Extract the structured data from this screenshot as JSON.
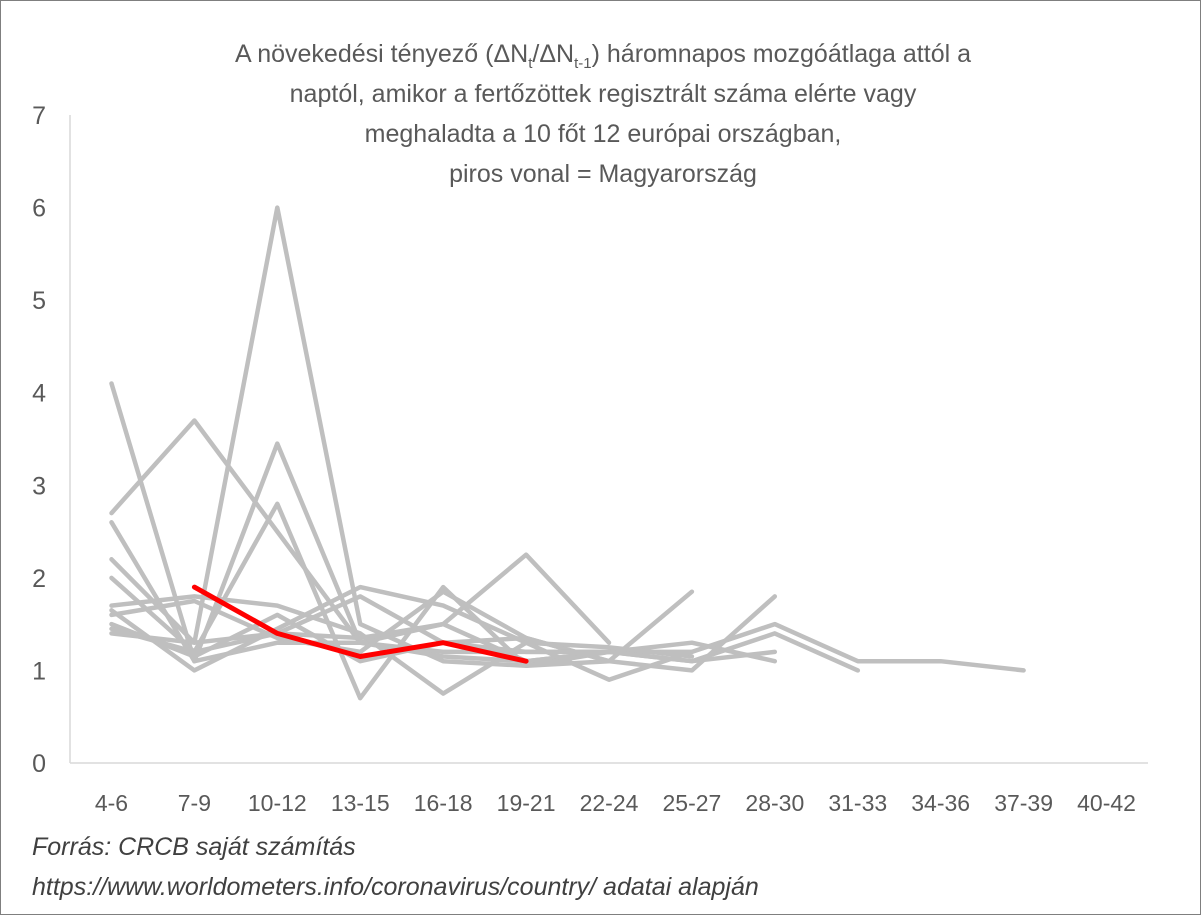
{
  "title": {
    "line1_pre": "A növekedési tényező (ΔN",
    "line1_sub1": "t",
    "line1_mid": "/ΔN",
    "line1_sub2": "t-1",
    "line1_post": ") háromnapos mozgóátlaga attól a",
    "line2": "naptól, amikor a fertőzöttek regisztrált száma elérte vagy",
    "line3": "meghaladta a 10 főt 12 európai országban,",
    "line4": "piros vonal = Magyarország"
  },
  "source": {
    "line1": "Forrás: CRCB saját számítás",
    "line2": "https://www.worldometers.info/coronavirus/country/ adatai alapján"
  },
  "colors": {
    "other": "#bfbfbf",
    "highlight": "#ff0000",
    "axis": "#d9d9d9",
    "text": "#595959"
  },
  "chart_data": {
    "type": "line",
    "categories": [
      "4-6",
      "7-9",
      "10-12",
      "13-15",
      "16-18",
      "19-21",
      "22-24",
      "25-27",
      "28-30",
      "31-33",
      "34-36",
      "37-39",
      "40-42"
    ],
    "ylim": [
      0,
      7
    ],
    "yticks": [
      0,
      1,
      2,
      3,
      4,
      5,
      6,
      7
    ],
    "grid": false,
    "legend": "none",
    "series": [
      {
        "highlight": false,
        "values": [
          4.1,
          1.1,
          1.3,
          1.3,
          1.2,
          1.2,
          1.2,
          1.2,
          1.5,
          1.1,
          1.1,
          1.0,
          null
        ]
      },
      {
        "highlight": false,
        "values": [
          2.7,
          3.7,
          2.5,
          1.3,
          1.5,
          1.1,
          1.2,
          1.1,
          1.4,
          1.0,
          null,
          null,
          null
        ]
      },
      {
        "highlight": false,
        "values": [
          2.6,
          1.1,
          3.45,
          1.3,
          1.15,
          1.1,
          1.2,
          1.3,
          1.1,
          null,
          null,
          null,
          null
        ]
      },
      {
        "highlight": false,
        "values": [
          2.2,
          1.3,
          6.0,
          1.5,
          1.1,
          1.05,
          1.2,
          1.1,
          1.2,
          null,
          null,
          null,
          null
        ]
      },
      {
        "highlight": false,
        "values": [
          2.0,
          1.2,
          2.8,
          0.7,
          1.9,
          1.05,
          1.1,
          1.0,
          1.8,
          null,
          null,
          null,
          null
        ]
      },
      {
        "highlight": false,
        "values": [
          1.7,
          1.8,
          1.7,
          1.4,
          0.75,
          1.3,
          1.25,
          1.15,
          null,
          null,
          null,
          null,
          null
        ]
      },
      {
        "highlight": false,
        "values": [
          1.65,
          1.0,
          1.45,
          1.9,
          1.7,
          1.3,
          0.9,
          1.2,
          null,
          null,
          null,
          null,
          null
        ]
      },
      {
        "highlight": false,
        "values": [
          1.6,
          1.75,
          1.35,
          1.2,
          1.85,
          1.35,
          1.1,
          null,
          null,
          null,
          null,
          null,
          null
        ]
      },
      {
        "highlight": false,
        "values": [
          1.5,
          1.15,
          1.6,
          1.1,
          1.3,
          1.35,
          1.1,
          1.85,
          null,
          null,
          null,
          null,
          null
        ]
      },
      {
        "highlight": false,
        "values": [
          1.45,
          1.2,
          1.4,
          1.35,
          1.5,
          2.25,
          1.3,
          null,
          null,
          null,
          null,
          null,
          null
        ]
      },
      {
        "highlight": false,
        "values": [
          1.4,
          1.3,
          1.4,
          1.8,
          1.3,
          1.2,
          1.2,
          null,
          null,
          null,
          null,
          null,
          null
        ]
      },
      {
        "highlight": true,
        "values": [
          null,
          1.9,
          1.4,
          1.15,
          1.3,
          1.1,
          null,
          null,
          null,
          null,
          null,
          null,
          null
        ]
      }
    ]
  }
}
